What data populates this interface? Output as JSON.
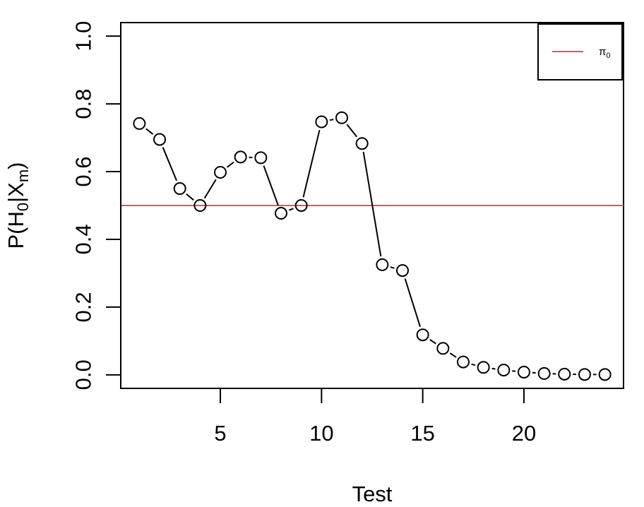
{
  "chart_data": {
    "type": "line",
    "subtype": "points-with-gapped-lines",
    "x": [
      1,
      2,
      3,
      4,
      5,
      6,
      7,
      8,
      9,
      10,
      11,
      12,
      13,
      14,
      15,
      16,
      17,
      18,
      19,
      20,
      21,
      22,
      23,
      24
    ],
    "series": [
      {
        "values": [
          0.742,
          0.695,
          0.55,
          0.5,
          0.598,
          0.643,
          0.641,
          0.477,
          0.5,
          0.747,
          0.759,
          0.683,
          0.325,
          0.308,
          0.118,
          0.078,
          0.038,
          0.022,
          0.014,
          0.008,
          0.004,
          0.002,
          0.001,
          0.001
        ],
        "color": "#000000",
        "marker": "open-circle"
      }
    ],
    "reference_line": {
      "name": "π",
      "subscript": "0",
      "y": 0.5,
      "color": "#DF536B"
    },
    "xlabel": "Test",
    "ylabel": {
      "prefix": "P(H",
      "sub1": "0",
      "mid": "|X",
      "sub2": "m",
      "suffix": ")"
    },
    "xticks": [
      "5",
      "10",
      "15",
      "20"
    ],
    "xtick_values": [
      5,
      10,
      15,
      20
    ],
    "yticks": [
      "0.0",
      "0.2",
      "0.4",
      "0.6",
      "0.8",
      "1.0"
    ],
    "ytick_values": [
      0,
      0.2,
      0.4,
      0.6,
      0.8,
      1.0
    ],
    "xlim": [
      0.08,
      24.92
    ],
    "ylim": [
      -0.04,
      1.04
    ],
    "grid": false,
    "legend_position": "top-right"
  }
}
